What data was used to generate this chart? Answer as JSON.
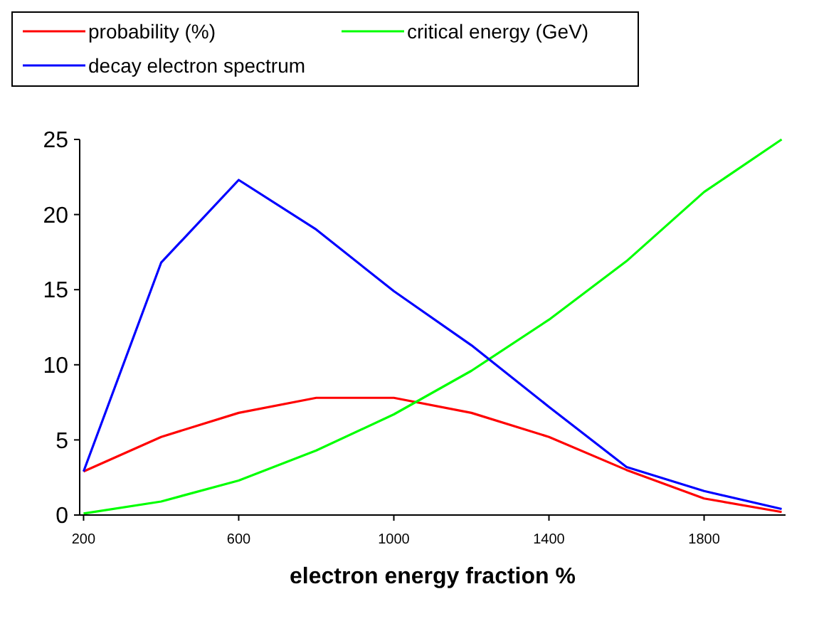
{
  "chart_data": {
    "type": "line",
    "xlabel": "electron energy fraction %",
    "x": [
      200,
      400,
      600,
      800,
      1000,
      1200,
      1400,
      1600,
      1800,
      2000
    ],
    "xlim": [
      190,
      2010
    ],
    "xticks": [
      200,
      600,
      1000,
      1400,
      1800
    ],
    "ylim": [
      0,
      25
    ],
    "yticks": [
      0,
      5,
      10,
      15,
      20,
      25
    ],
    "legend": "top",
    "grid": false,
    "series": [
      {
        "name": "probability (%)",
        "color": "#ff0000",
        "values": [
          2.9,
          5.2,
          6.8,
          7.8,
          7.8,
          6.8,
          5.2,
          3.0,
          1.1,
          0.2
        ]
      },
      {
        "name": "critical energy (GeV)",
        "color": "#00ff00",
        "values": [
          0.1,
          0.9,
          2.3,
          4.3,
          6.7,
          9.6,
          13.0,
          16.9,
          21.5,
          25
        ]
      },
      {
        "name": "decay electron spectrum",
        "color": "#0000ff",
        "values": [
          2.9,
          16.8,
          22.3,
          19.0,
          14.9,
          11.3,
          7.2,
          3.2,
          1.6,
          0.4
        ]
      }
    ]
  }
}
